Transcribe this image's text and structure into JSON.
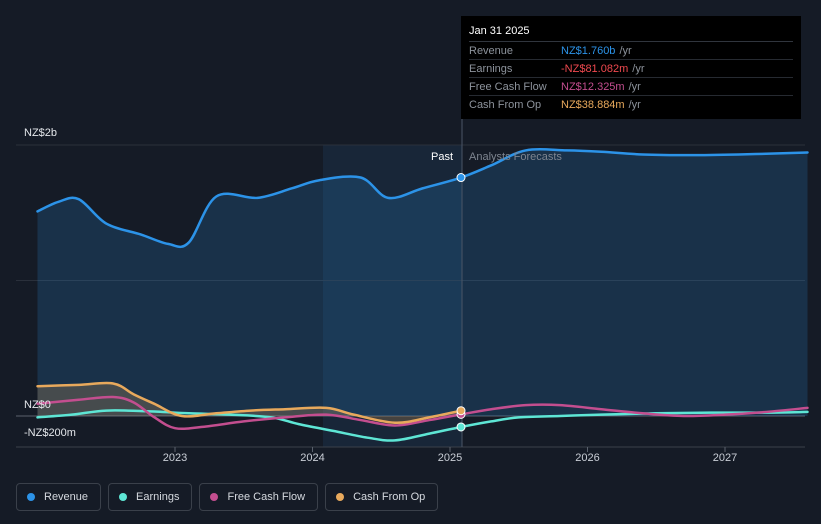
{
  "chart_data": {
    "type": "line",
    "x_ticks": [
      "2023",
      "2024",
      "2025",
      "2026",
      "2027"
    ],
    "y_ticks": [
      "NZ$2b",
      "NZ$0",
      "-NZ$200m"
    ],
    "ylim": [
      -200,
      2000
    ],
    "past_label": "Past",
    "forecast_label": "Analysts Forecasts",
    "highlight_date": "Jan 31 2025",
    "series": [
      {
        "name": "Revenue",
        "color": "#2c93e8",
        "fill": true,
        "x": [
          2022.0,
          2022.15,
          2022.3,
          2022.5,
          2022.75,
          2022.95,
          2023.1,
          2023.3,
          2023.6,
          2023.85,
          2024.05,
          2024.35,
          2024.55,
          2024.8,
          2025.08,
          2025.3,
          2025.55,
          2025.85,
          2026.1,
          2026.4,
          2026.75,
          2027.1,
          2027.45,
          2027.6
        ],
        "y": [
          1510,
          1580,
          1600,
          1420,
          1340,
          1270,
          1280,
          1620,
          1610,
          1680,
          1740,
          1760,
          1610,
          1680,
          1760,
          1850,
          1960,
          1960,
          1950,
          1930,
          1925,
          1930,
          1940,
          1945
        ]
      },
      {
        "name": "Earnings",
        "color": "#5ee6d5",
        "fill": false,
        "x": [
          2022.0,
          2022.25,
          2022.5,
          2022.8,
          2023.1,
          2023.4,
          2023.7,
          2023.9,
          2024.15,
          2024.4,
          2024.6,
          2024.85,
          2025.08,
          2025.3,
          2025.5,
          2025.8,
          2026.1,
          2026.5,
          2026.9,
          2027.3,
          2027.6
        ],
        "y": [
          -10,
          10,
          40,
          35,
          20,
          10,
          -10,
          -60,
          -110,
          -160,
          -180,
          -130,
          -81,
          -40,
          -10,
          0,
          10,
          20,
          25,
          25,
          30
        ]
      },
      {
        "name": "Free Cash Flow",
        "color": "#c34e8f",
        "fill": false,
        "x": [
          2022.0,
          2022.3,
          2022.55,
          2022.7,
          2022.85,
          2023.0,
          2023.2,
          2023.5,
          2023.8,
          2024.1,
          2024.35,
          2024.6,
          2024.85,
          2025.08,
          2025.3,
          2025.55,
          2025.8,
          2026.1,
          2026.4,
          2026.7,
          2027.0,
          2027.3,
          2027.6
        ],
        "y": [
          90,
          120,
          140,
          100,
          -10,
          -90,
          -80,
          -40,
          -10,
          10,
          -30,
          -70,
          -30,
          12,
          50,
          80,
          80,
          50,
          20,
          0,
          10,
          30,
          60
        ]
      },
      {
        "name": "Cash From Op",
        "color": "#e8a95c",
        "fill": true,
        "x": [
          2022.0,
          2022.3,
          2022.55,
          2022.7,
          2022.85,
          2023.05,
          2023.3,
          2023.55,
          2023.8,
          2024.1,
          2024.3,
          2024.6,
          2024.85,
          2025.08
        ],
        "y": [
          220,
          230,
          240,
          160,
          90,
          0,
          20,
          40,
          50,
          60,
          10,
          -50,
          -10,
          39
        ]
      }
    ]
  },
  "tooltip": {
    "date": "Jan 31 2025",
    "rows": [
      {
        "label": "Revenue",
        "value": "NZ$1.760b",
        "unit": "/yr",
        "color": "#2c93e8"
      },
      {
        "label": "Earnings",
        "value": "-NZ$81.082m",
        "unit": "/yr",
        "color": "#f0494f"
      },
      {
        "label": "Free Cash Flow",
        "value": "NZ$12.325m",
        "unit": "/yr",
        "color": "#c34e8f"
      },
      {
        "label": "Cash From Op",
        "value": "NZ$38.884m",
        "unit": "/yr",
        "color": "#e8a95c"
      }
    ]
  },
  "legend": [
    {
      "label": "Revenue",
      "color": "#2c93e8"
    },
    {
      "label": "Earnings",
      "color": "#5ee6d5"
    },
    {
      "label": "Free Cash Flow",
      "color": "#c34e8f"
    },
    {
      "label": "Cash From Op",
      "color": "#e8a95c"
    }
  ]
}
